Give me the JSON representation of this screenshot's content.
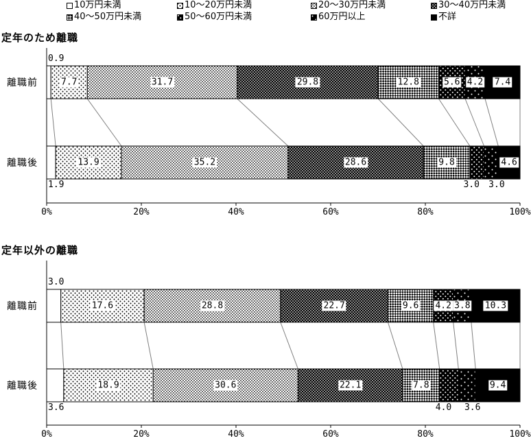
{
  "page": {
    "background": "#ffffff"
  },
  "colors": {
    "ink": "#000000",
    "connector": "#7f7f7f",
    "label_box_bg": "#ffffff"
  },
  "legend": {
    "items": [
      {
        "label": "10万円未満",
        "pattern": "white"
      },
      {
        "label": "10〜20万円未満",
        "pattern": "dots-sparse"
      },
      {
        "label": "20〜30万円未満",
        "pattern": "dots-dense"
      },
      {
        "label": "30〜40万円未満",
        "pattern": "dark-dots-dense"
      },
      {
        "label": "40〜50万円未満",
        "pattern": "checker"
      },
      {
        "label": "50〜60万円未満",
        "pattern": "dark-dots-medium"
      },
      {
        "label": "60万円以上",
        "pattern": "dark-dots-sparse"
      },
      {
        "label": "不詳",
        "pattern": "black"
      }
    ]
  },
  "chart_data": [
    {
      "type": "bar",
      "stacked": true,
      "orientation": "horizontal",
      "title": "定年のため離職",
      "categories": [
        "離職前",
        "離職後"
      ],
      "series": [
        {
          "name": "10万円未満",
          "pattern": "white",
          "values": [
            0.9,
            1.9
          ]
        },
        {
          "name": "10〜20万円未満",
          "pattern": "dots-sparse",
          "values": [
            7.7,
            13.9
          ]
        },
        {
          "name": "20〜30万円未満",
          "pattern": "dots-dense",
          "values": [
            31.7,
            35.2
          ]
        },
        {
          "name": "30〜40万円未満",
          "pattern": "dark-dots-dense",
          "values": [
            29.8,
            28.6
          ]
        },
        {
          "name": "40〜50万円未満",
          "pattern": "checker",
          "values": [
            12.8,
            9.8
          ]
        },
        {
          "name": "50〜60万円未満",
          "pattern": "dark-dots-medium",
          "values": [
            5.6,
            3.0
          ]
        },
        {
          "name": "60万円以上",
          "pattern": "dark-dots-sparse",
          "values": [
            4.2,
            3.0
          ]
        },
        {
          "name": "不詳",
          "pattern": "black",
          "values": [
            7.4,
            4.6
          ]
        }
      ],
      "xlim": [
        0,
        100
      ],
      "x_ticks": [
        "0%",
        "20%",
        "40%",
        "60%",
        "80%",
        "100%"
      ],
      "grid": false,
      "legend_position": "top",
      "outside_label_indices": [
        [
          0
        ],
        [
          0,
          5,
          6
        ]
      ]
    },
    {
      "type": "bar",
      "stacked": true,
      "orientation": "horizontal",
      "title": "定年以外の離職",
      "categories": [
        "離職前",
        "離職後"
      ],
      "series": [
        {
          "name": "10万円未満",
          "pattern": "white",
          "values": [
            3.0,
            3.6
          ]
        },
        {
          "name": "10〜20万円未満",
          "pattern": "dots-sparse",
          "values": [
            17.6,
            18.9
          ]
        },
        {
          "name": "20〜30万円未満",
          "pattern": "dots-dense",
          "values": [
            28.8,
            30.6
          ]
        },
        {
          "name": "30〜40万円未満",
          "pattern": "dark-dots-dense",
          "values": [
            22.7,
            22.1
          ]
        },
        {
          "name": "40〜50万円未満",
          "pattern": "checker",
          "values": [
            9.6,
            7.8
          ]
        },
        {
          "name": "50〜60万円未満",
          "pattern": "dark-dots-medium",
          "values": [
            4.2,
            4.0
          ]
        },
        {
          "name": "60万円以上",
          "pattern": "dark-dots-sparse",
          "values": [
            3.8,
            3.6
          ]
        },
        {
          "name": "不詳",
          "pattern": "black",
          "values": [
            10.3,
            9.4
          ]
        }
      ],
      "xlim": [
        0,
        100
      ],
      "x_ticks": [
        "0%",
        "20%",
        "40%",
        "60%",
        "80%",
        "100%"
      ],
      "grid": false,
      "legend_position": "top",
      "outside_label_indices": [
        [
          0
        ],
        [
          0,
          5,
          6
        ]
      ]
    }
  ]
}
